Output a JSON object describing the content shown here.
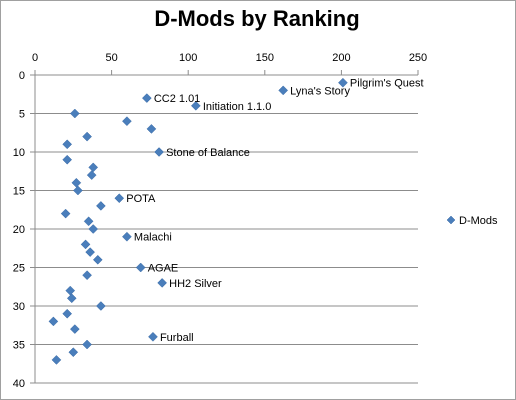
{
  "chart_data": {
    "type": "scatter",
    "title": "D-Mods by Ranking",
    "xlim": [
      0,
      250
    ],
    "ylim": [
      0,
      40
    ],
    "x_ticks": [
      0,
      50,
      100,
      150,
      200,
      250
    ],
    "y_ticks": [
      0,
      5,
      10,
      15,
      20,
      25,
      30,
      35,
      40
    ],
    "x_axis_position": "top",
    "y_axis_reversed": true,
    "grid": "horizontal",
    "legend": {
      "position": "right",
      "entries": [
        "D-Mods"
      ]
    },
    "marker_color": "#4a7ebb",
    "series": [
      {
        "name": "D-Mods",
        "points": [
          {
            "x": 201,
            "y": 1,
            "label": "Pilgrim's Quest"
          },
          {
            "x": 162,
            "y": 2,
            "label": "Lyna's Story"
          },
          {
            "x": 73,
            "y": 3,
            "label": "CC2 1.01"
          },
          {
            "x": 105,
            "y": 4,
            "label": "Initiation 1.1.0"
          },
          {
            "x": 26,
            "y": 5,
            "label": ""
          },
          {
            "x": 60,
            "y": 6,
            "label": ""
          },
          {
            "x": 76,
            "y": 7,
            "label": ""
          },
          {
            "x": 34,
            "y": 8,
            "label": ""
          },
          {
            "x": 21,
            "y": 9,
            "label": ""
          },
          {
            "x": 81,
            "y": 10,
            "label": "Stone of Balance"
          },
          {
            "x": 21,
            "y": 11,
            "label": ""
          },
          {
            "x": 38,
            "y": 12,
            "label": ""
          },
          {
            "x": 37,
            "y": 13,
            "label": ""
          },
          {
            "x": 27,
            "y": 14,
            "label": ""
          },
          {
            "x": 28,
            "y": 15,
            "label": ""
          },
          {
            "x": 55,
            "y": 16,
            "label": "POTA"
          },
          {
            "x": 43,
            "y": 17,
            "label": ""
          },
          {
            "x": 20,
            "y": 18,
            "label": ""
          },
          {
            "x": 35,
            "y": 19,
            "label": ""
          },
          {
            "x": 38,
            "y": 20,
            "label": ""
          },
          {
            "x": 60,
            "y": 21,
            "label": "Malachi"
          },
          {
            "x": 33,
            "y": 22,
            "label": ""
          },
          {
            "x": 36,
            "y": 23,
            "label": ""
          },
          {
            "x": 41,
            "y": 24,
            "label": ""
          },
          {
            "x": 69,
            "y": 25,
            "label": "AGAE"
          },
          {
            "x": 34,
            "y": 26,
            "label": ""
          },
          {
            "x": 83,
            "y": 27,
            "label": "HH2 Silver"
          },
          {
            "x": 23,
            "y": 28,
            "label": ""
          },
          {
            "x": 24,
            "y": 29,
            "label": ""
          },
          {
            "x": 43,
            "y": 30,
            "label": ""
          },
          {
            "x": 21,
            "y": 31,
            "label": ""
          },
          {
            "x": 12,
            "y": 32,
            "label": ""
          },
          {
            "x": 26,
            "y": 33,
            "label": ""
          },
          {
            "x": 77,
            "y": 34,
            "label": "Furball"
          },
          {
            "x": 34,
            "y": 35,
            "label": ""
          },
          {
            "x": 25,
            "y": 36,
            "label": ""
          },
          {
            "x": 14,
            "y": 37,
            "label": ""
          }
        ]
      }
    ]
  }
}
